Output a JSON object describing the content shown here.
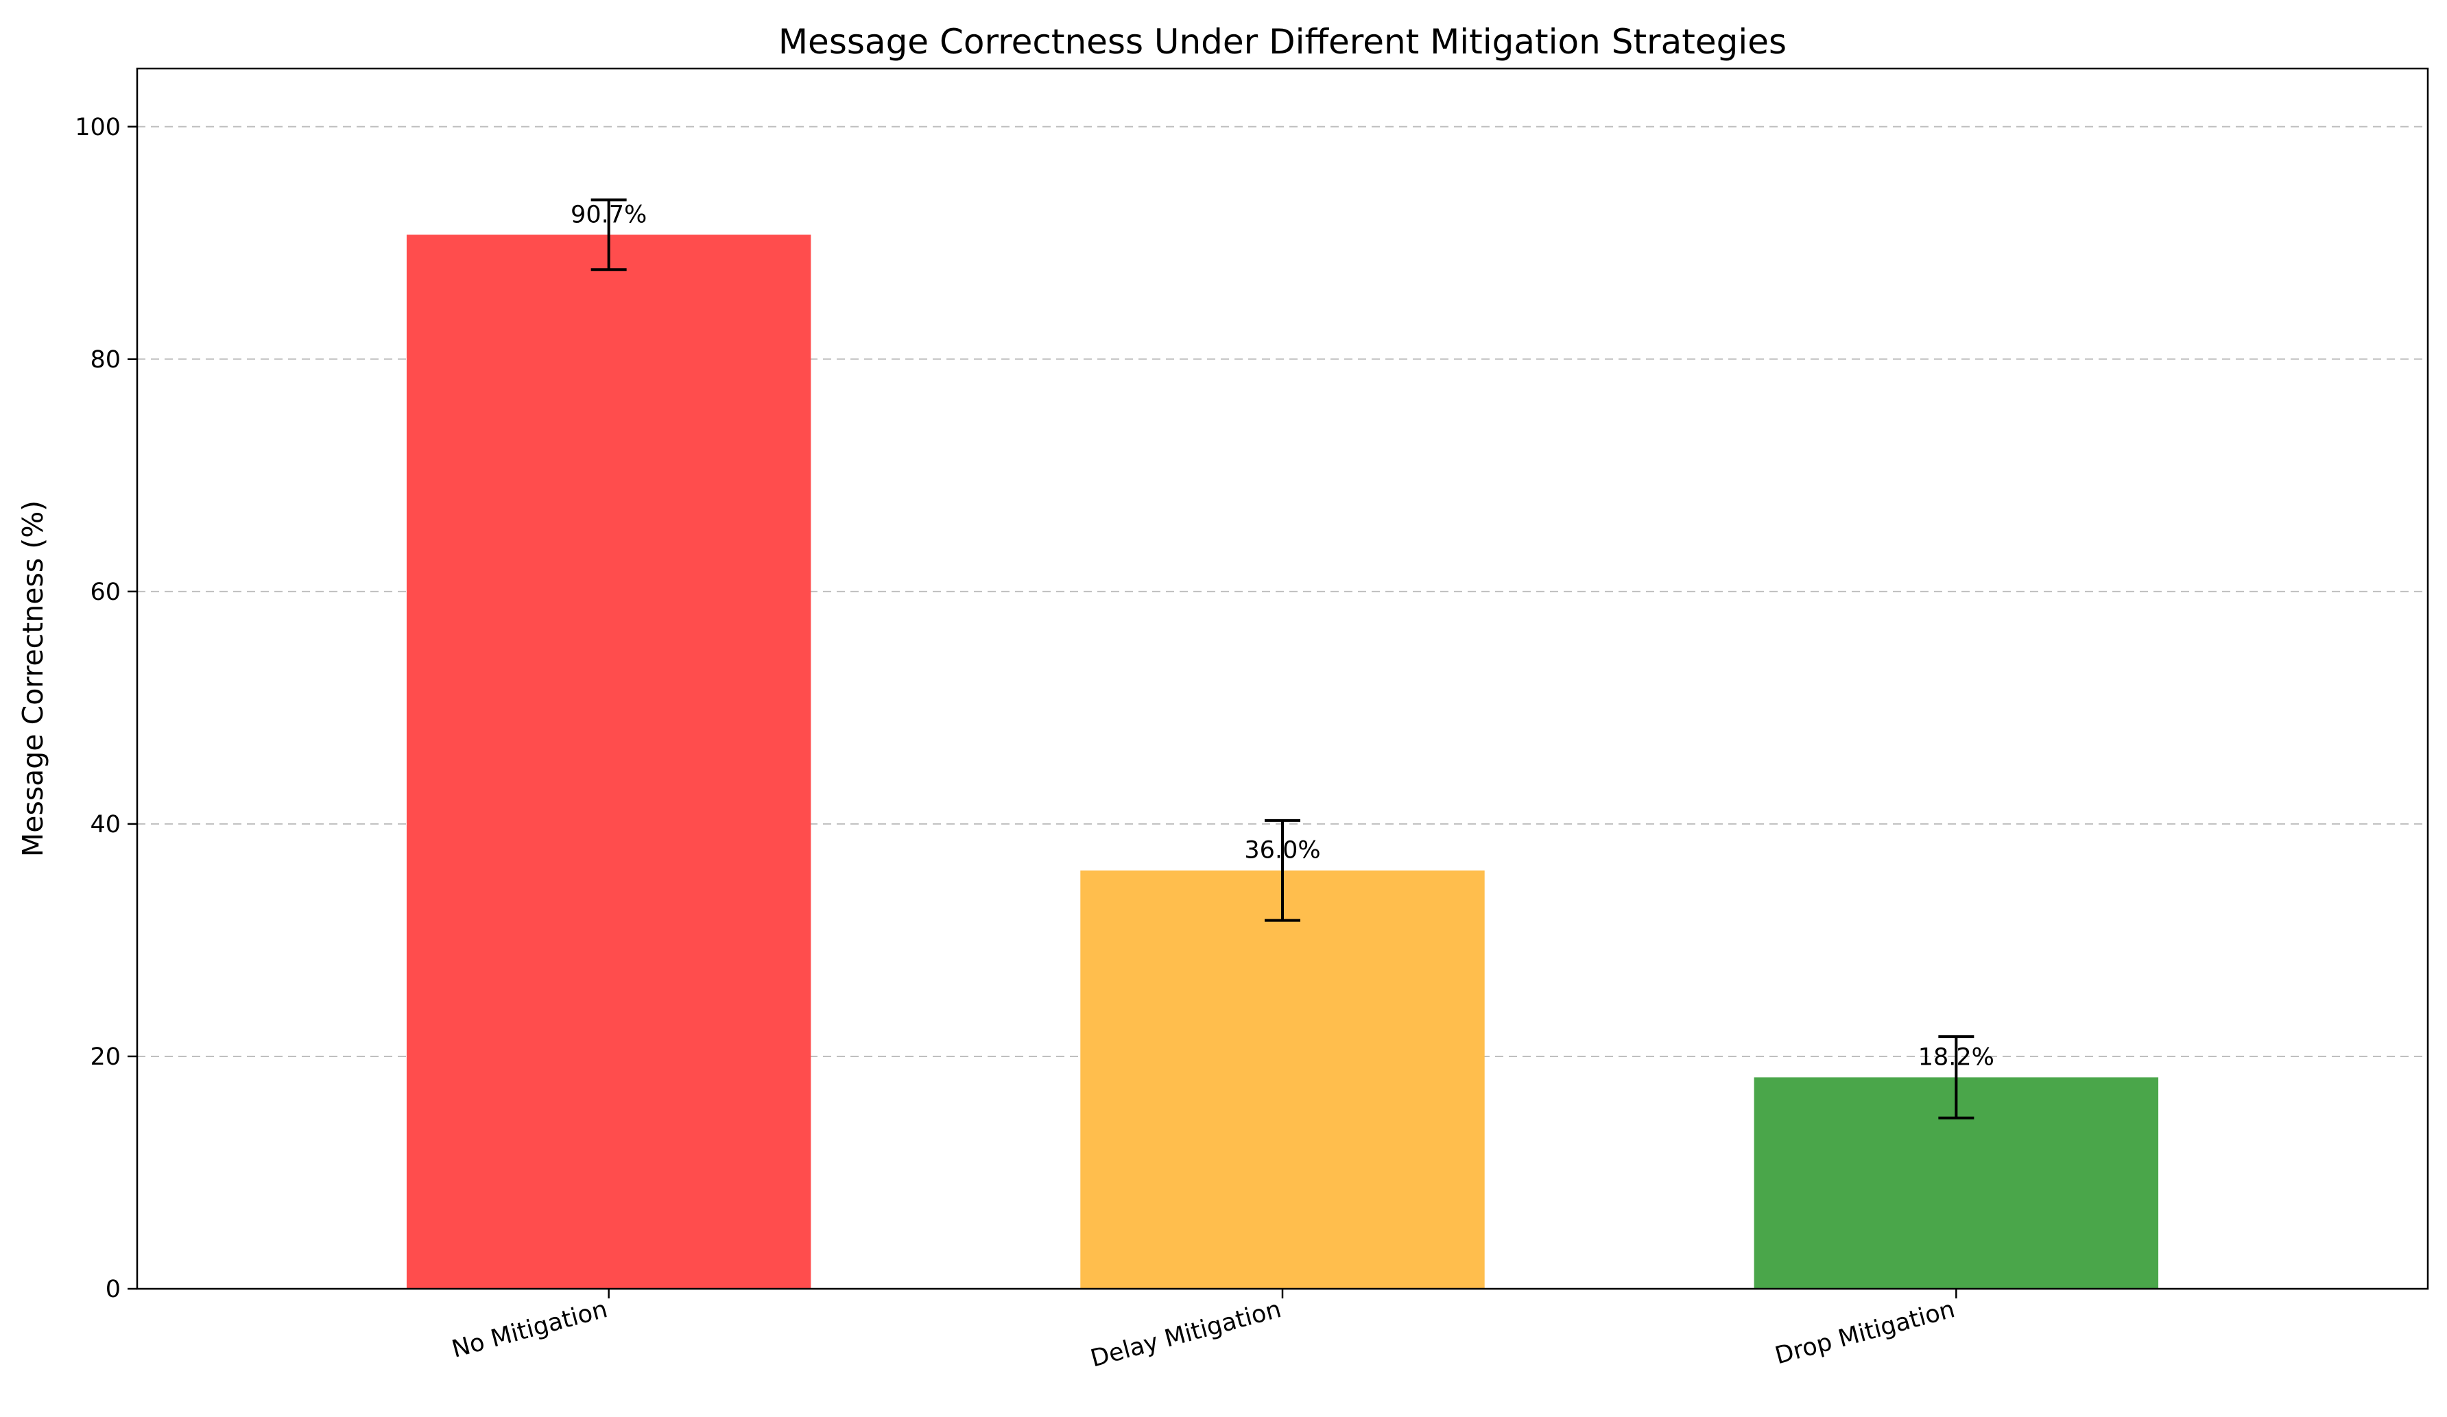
{
  "chart_data": {
    "type": "bar",
    "title": "Message Correctness Under Different Mitigation Strategies",
    "xlabel": "",
    "ylabel": "Message Correctness (%)",
    "categories": [
      "No Mitigation",
      "Delay Mitigation",
      "Drop Mitigation"
    ],
    "values": [
      90.7,
      36.0,
      18.2
    ],
    "errors": [
      3.0,
      4.3,
      3.5
    ],
    "data_labels": [
      "90.7%",
      "36.0%",
      "18.2%"
    ],
    "colors": [
      "#ff4d4d",
      "#ffbe4d",
      "#4aa64a"
    ],
    "ylim": [
      0,
      105
    ],
    "yticks": [
      0,
      20,
      40,
      60,
      80,
      100
    ],
    "ytick_labels": [
      "0",
      "20",
      "40",
      "60",
      "80",
      "100"
    ],
    "grid": "y-dashed",
    "legend": "none"
  }
}
